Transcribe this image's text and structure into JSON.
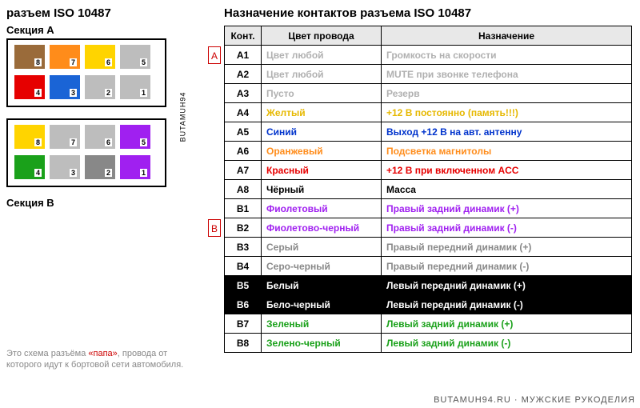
{
  "titles": {
    "left": "разъем ISO 10487",
    "right": "Назначение контактов разъема ISO 10487",
    "section_a": "Секция A",
    "section_b": "Секция B",
    "side_text": "BUTAMUH94"
  },
  "footnote": {
    "prefix": "Это схема разъёма ",
    "papa": "«папа»",
    "suffix": ", провода от которого идут к бортовой сети автомобиля."
  },
  "watermark": "BUTAMUH94.RU · МУЖСКИЕ РУКОДЕЛИЯ",
  "badges": {
    "a": "A",
    "b": "B"
  },
  "connector": {
    "a_top": [
      {
        "n": "8",
        "color": "#9a6b3a"
      },
      {
        "n": "7",
        "color": "#ff8c1a"
      },
      {
        "n": "6",
        "color": "#ffd400"
      },
      {
        "n": "5",
        "color": "#bdbdbd"
      }
    ],
    "a_bot": [
      {
        "n": "4",
        "color": "#e60000"
      },
      {
        "n": "3",
        "color": "#1a64d6"
      },
      {
        "n": "2",
        "color": "#bdbdbd"
      },
      {
        "n": "1",
        "color": "#bdbdbd"
      }
    ],
    "b_top": [
      {
        "n": "8",
        "color": "#ffd400"
      },
      {
        "n": "7",
        "color": "#bdbdbd"
      },
      {
        "n": "6",
        "color": "#bdbdbd"
      },
      {
        "n": "5",
        "color": "#a020f0"
      }
    ],
    "b_bot": [
      {
        "n": "4",
        "color": "#1aa11a"
      },
      {
        "n": "3",
        "color": "#bdbdbd"
      },
      {
        "n": "2",
        "color": "#888888"
      },
      {
        "n": "1",
        "color": "#a020f0"
      }
    ]
  },
  "table": {
    "headers": [
      "Конт.",
      "Цвет провода",
      "Назначение"
    ],
    "rows": [
      {
        "pin": "A1",
        "wire": "Цвет любой",
        "purpose": "Громкость на скорости",
        "color": "#b0b0b0",
        "bg": ""
      },
      {
        "pin": "A2",
        "wire": "Цвет любой",
        "purpose": "MUTE при звонке телефона",
        "color": "#b0b0b0",
        "bg": ""
      },
      {
        "pin": "A3",
        "wire": "Пусто",
        "purpose": "Резерв",
        "color": "#b0b0b0",
        "bg": ""
      },
      {
        "pin": "A4",
        "wire": "Желтый",
        "purpose": "+12 В постоянно (память!!!)",
        "color": "#e6b800",
        "bg": ""
      },
      {
        "pin": "A5",
        "wire": "Синий",
        "purpose": "Выход +12 В на авт. антенну",
        "color": "#0033cc",
        "bg": ""
      },
      {
        "pin": "A6",
        "wire": "Оранжевый",
        "purpose": "Подсветка магнитолы",
        "color": "#ff8c1a",
        "bg": ""
      },
      {
        "pin": "A7",
        "wire": "Красный",
        "purpose": "+12 В при включенном ACC",
        "color": "#e60000",
        "bg": ""
      },
      {
        "pin": "A8",
        "wire": "Чёрный",
        "purpose": "Масса",
        "color": "#000000",
        "bg": ""
      },
      {
        "pin": "B1",
        "wire": "Фиолетовый",
        "purpose": "Правый задний динамик (+)",
        "color": "#a020f0",
        "bg": ""
      },
      {
        "pin": "B2",
        "wire": "Фиолетово-черный",
        "purpose": "Правый задний динамик (-)",
        "color": "#a020f0",
        "bg": ""
      },
      {
        "pin": "B3",
        "wire": "Серый",
        "purpose": "Правый передний динамик (+)",
        "color": "#888888",
        "bg": ""
      },
      {
        "pin": "B4",
        "wire": "Серо-черный",
        "purpose": "Правый передний динамик (-)",
        "color": "#888888",
        "bg": ""
      },
      {
        "pin": "B5",
        "wire": "Белый",
        "purpose": "Левый передний динамик (+)",
        "color": "#ffffff",
        "bg": "#000000"
      },
      {
        "pin": "B6",
        "wire": "Бело-черный",
        "purpose": "Левый передний динамик (-)",
        "color": "#ffffff",
        "bg": "#000000"
      },
      {
        "pin": "B7",
        "wire": "Зеленый",
        "purpose": "Левый задний динамик (+)",
        "color": "#1aa11a",
        "bg": ""
      },
      {
        "pin": "B8",
        "wire": "Зелено-черный",
        "purpose": "Левый задний динамик (-)",
        "color": "#1aa11a",
        "bg": ""
      }
    ]
  }
}
